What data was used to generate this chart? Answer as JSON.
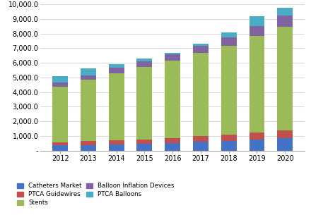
{
  "years": [
    2012,
    2013,
    2014,
    2015,
    2016,
    2017,
    2018,
    2019,
    2020
  ],
  "catheters": [
    350,
    380,
    420,
    470,
    530,
    600,
    650,
    750,
    820
  ],
  "ptca_guidewires": [
    220,
    250,
    270,
    300,
    330,
    370,
    420,
    470,
    540
  ],
  "stents": [
    3800,
    4200,
    4600,
    4950,
    5300,
    5700,
    6100,
    6600,
    7100
  ],
  "balloon_inflation": [
    280,
    320,
    360,
    390,
    430,
    500,
    580,
    670,
    780
  ],
  "ptca_balloons": [
    450,
    450,
    250,
    190,
    110,
    130,
    350,
    710,
    510
  ],
  "ylim": [
    0,
    10000
  ],
  "yticks": [
    0,
    1000,
    2000,
    3000,
    4000,
    5000,
    6000,
    7000,
    8000,
    9000,
    10000
  ],
  "ytick_labels": [
    "-",
    "1,000.0",
    "2,000.0",
    "3,000.0",
    "4,000.0",
    "5,000.0",
    "6,000.0",
    "7,000.0",
    "8,000.0",
    "9,000.0",
    "10,000.0"
  ],
  "colors": {
    "catheters": "#4472C4",
    "ptca_guidewires": "#C0504D",
    "stents": "#9BBB59",
    "balloon_inflation": "#8064A2",
    "ptca_balloons": "#4BACC6"
  },
  "bg_color": "#FFFFFF",
  "plot_bg_color": "#FFFFFF",
  "grid_color": "#D9D9D9",
  "legend_order": [
    "catheters",
    "ptca_guidewires",
    "stents",
    "balloon_inflation",
    "ptca_balloons"
  ],
  "legend_labels": {
    "catheters": "Catheters Market",
    "ptca_guidewires": "PTCA Guidewires",
    "stents": "Stents",
    "balloon_inflation": "Balloon Inflation Devices",
    "ptca_balloons": "PTCA Balloons"
  }
}
